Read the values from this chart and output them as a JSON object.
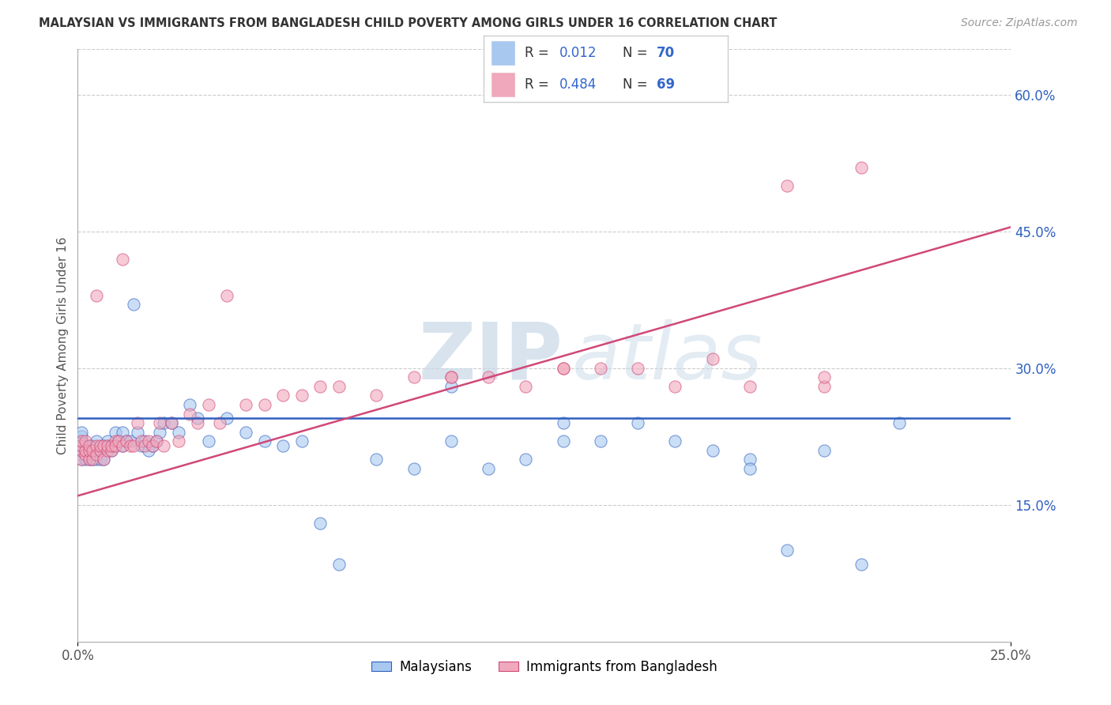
{
  "title": "MALAYSIAN VS IMMIGRANTS FROM BANGLADESH CHILD POVERTY AMONG GIRLS UNDER 16 CORRELATION CHART",
  "source": "Source: ZipAtlas.com",
  "ylabel": "Child Poverty Among Girls Under 16",
  "xlim": [
    0.0,
    0.25
  ],
  "ylim": [
    0.0,
    0.65
  ],
  "y_tick_labels_right": [
    "15.0%",
    "30.0%",
    "45.0%",
    "60.0%"
  ],
  "y_ticks_right": [
    0.15,
    0.3,
    0.45,
    0.6
  ],
  "color_blue": "#A8C8F0",
  "color_pink": "#F0A8BC",
  "line_blue": "#3060C0",
  "line_pink": "#D04878",
  "watermark1": "ZIP",
  "watermark2": "atlas",
  "title_color": "#333333",
  "legend_color": "#3366CC",
  "blue_x": [
    0.001,
    0.001,
    0.001,
    0.001,
    0.001,
    0.001,
    0.002,
    0.002,
    0.002,
    0.003,
    0.003,
    0.003,
    0.004,
    0.004,
    0.005,
    0.005,
    0.006,
    0.006,
    0.007,
    0.007,
    0.008,
    0.008,
    0.009,
    0.009,
    0.01,
    0.01,
    0.011,
    0.012,
    0.012,
    0.013,
    0.014,
    0.015,
    0.016,
    0.017,
    0.018,
    0.019,
    0.02,
    0.021,
    0.022,
    0.023,
    0.025,
    0.027,
    0.03,
    0.032,
    0.035,
    0.04,
    0.045,
    0.05,
    0.055,
    0.06,
    0.065,
    0.07,
    0.08,
    0.09,
    0.1,
    0.11,
    0.12,
    0.13,
    0.14,
    0.15,
    0.16,
    0.17,
    0.18,
    0.19,
    0.2,
    0.21,
    0.22,
    0.1,
    0.13,
    0.18
  ],
  "blue_y": [
    0.2,
    0.21,
    0.215,
    0.22,
    0.225,
    0.23,
    0.2,
    0.21,
    0.215,
    0.2,
    0.21,
    0.215,
    0.2,
    0.215,
    0.2,
    0.22,
    0.2,
    0.21,
    0.2,
    0.215,
    0.215,
    0.22,
    0.21,
    0.215,
    0.215,
    0.23,
    0.22,
    0.215,
    0.23,
    0.22,
    0.22,
    0.37,
    0.23,
    0.215,
    0.22,
    0.21,
    0.215,
    0.22,
    0.23,
    0.24,
    0.24,
    0.23,
    0.26,
    0.245,
    0.22,
    0.245,
    0.23,
    0.22,
    0.215,
    0.22,
    0.13,
    0.085,
    0.2,
    0.19,
    0.22,
    0.19,
    0.2,
    0.24,
    0.22,
    0.24,
    0.22,
    0.21,
    0.2,
    0.1,
    0.21,
    0.085,
    0.24,
    0.28,
    0.22,
    0.19
  ],
  "pink_x": [
    0.001,
    0.001,
    0.001,
    0.001,
    0.002,
    0.002,
    0.002,
    0.003,
    0.003,
    0.003,
    0.004,
    0.004,
    0.005,
    0.005,
    0.005,
    0.006,
    0.006,
    0.007,
    0.007,
    0.008,
    0.008,
    0.009,
    0.009,
    0.01,
    0.01,
    0.011,
    0.012,
    0.012,
    0.013,
    0.014,
    0.015,
    0.016,
    0.017,
    0.018,
    0.019,
    0.02,
    0.021,
    0.022,
    0.023,
    0.025,
    0.027,
    0.03,
    0.032,
    0.035,
    0.038,
    0.04,
    0.045,
    0.05,
    0.055,
    0.06,
    0.065,
    0.07,
    0.08,
    0.09,
    0.1,
    0.11,
    0.12,
    0.13,
    0.14,
    0.15,
    0.16,
    0.17,
    0.18,
    0.19,
    0.2,
    0.21,
    0.1,
    0.13,
    0.2
  ],
  "pink_y": [
    0.2,
    0.21,
    0.215,
    0.22,
    0.205,
    0.21,
    0.22,
    0.2,
    0.21,
    0.215,
    0.2,
    0.21,
    0.205,
    0.215,
    0.38,
    0.21,
    0.215,
    0.2,
    0.215,
    0.21,
    0.215,
    0.21,
    0.215,
    0.22,
    0.215,
    0.22,
    0.215,
    0.42,
    0.22,
    0.215,
    0.215,
    0.24,
    0.22,
    0.215,
    0.22,
    0.215,
    0.22,
    0.24,
    0.215,
    0.24,
    0.22,
    0.25,
    0.24,
    0.26,
    0.24,
    0.38,
    0.26,
    0.26,
    0.27,
    0.27,
    0.28,
    0.28,
    0.27,
    0.29,
    0.29,
    0.29,
    0.28,
    0.3,
    0.3,
    0.3,
    0.28,
    0.31,
    0.28,
    0.5,
    0.28,
    0.52,
    0.29,
    0.3,
    0.29
  ],
  "blue_line_y0": 0.245,
  "blue_line_y1": 0.245,
  "pink_line_x0": 0.0,
  "pink_line_y0": 0.16,
  "pink_line_x1": 0.25,
  "pink_line_y1": 0.455
}
